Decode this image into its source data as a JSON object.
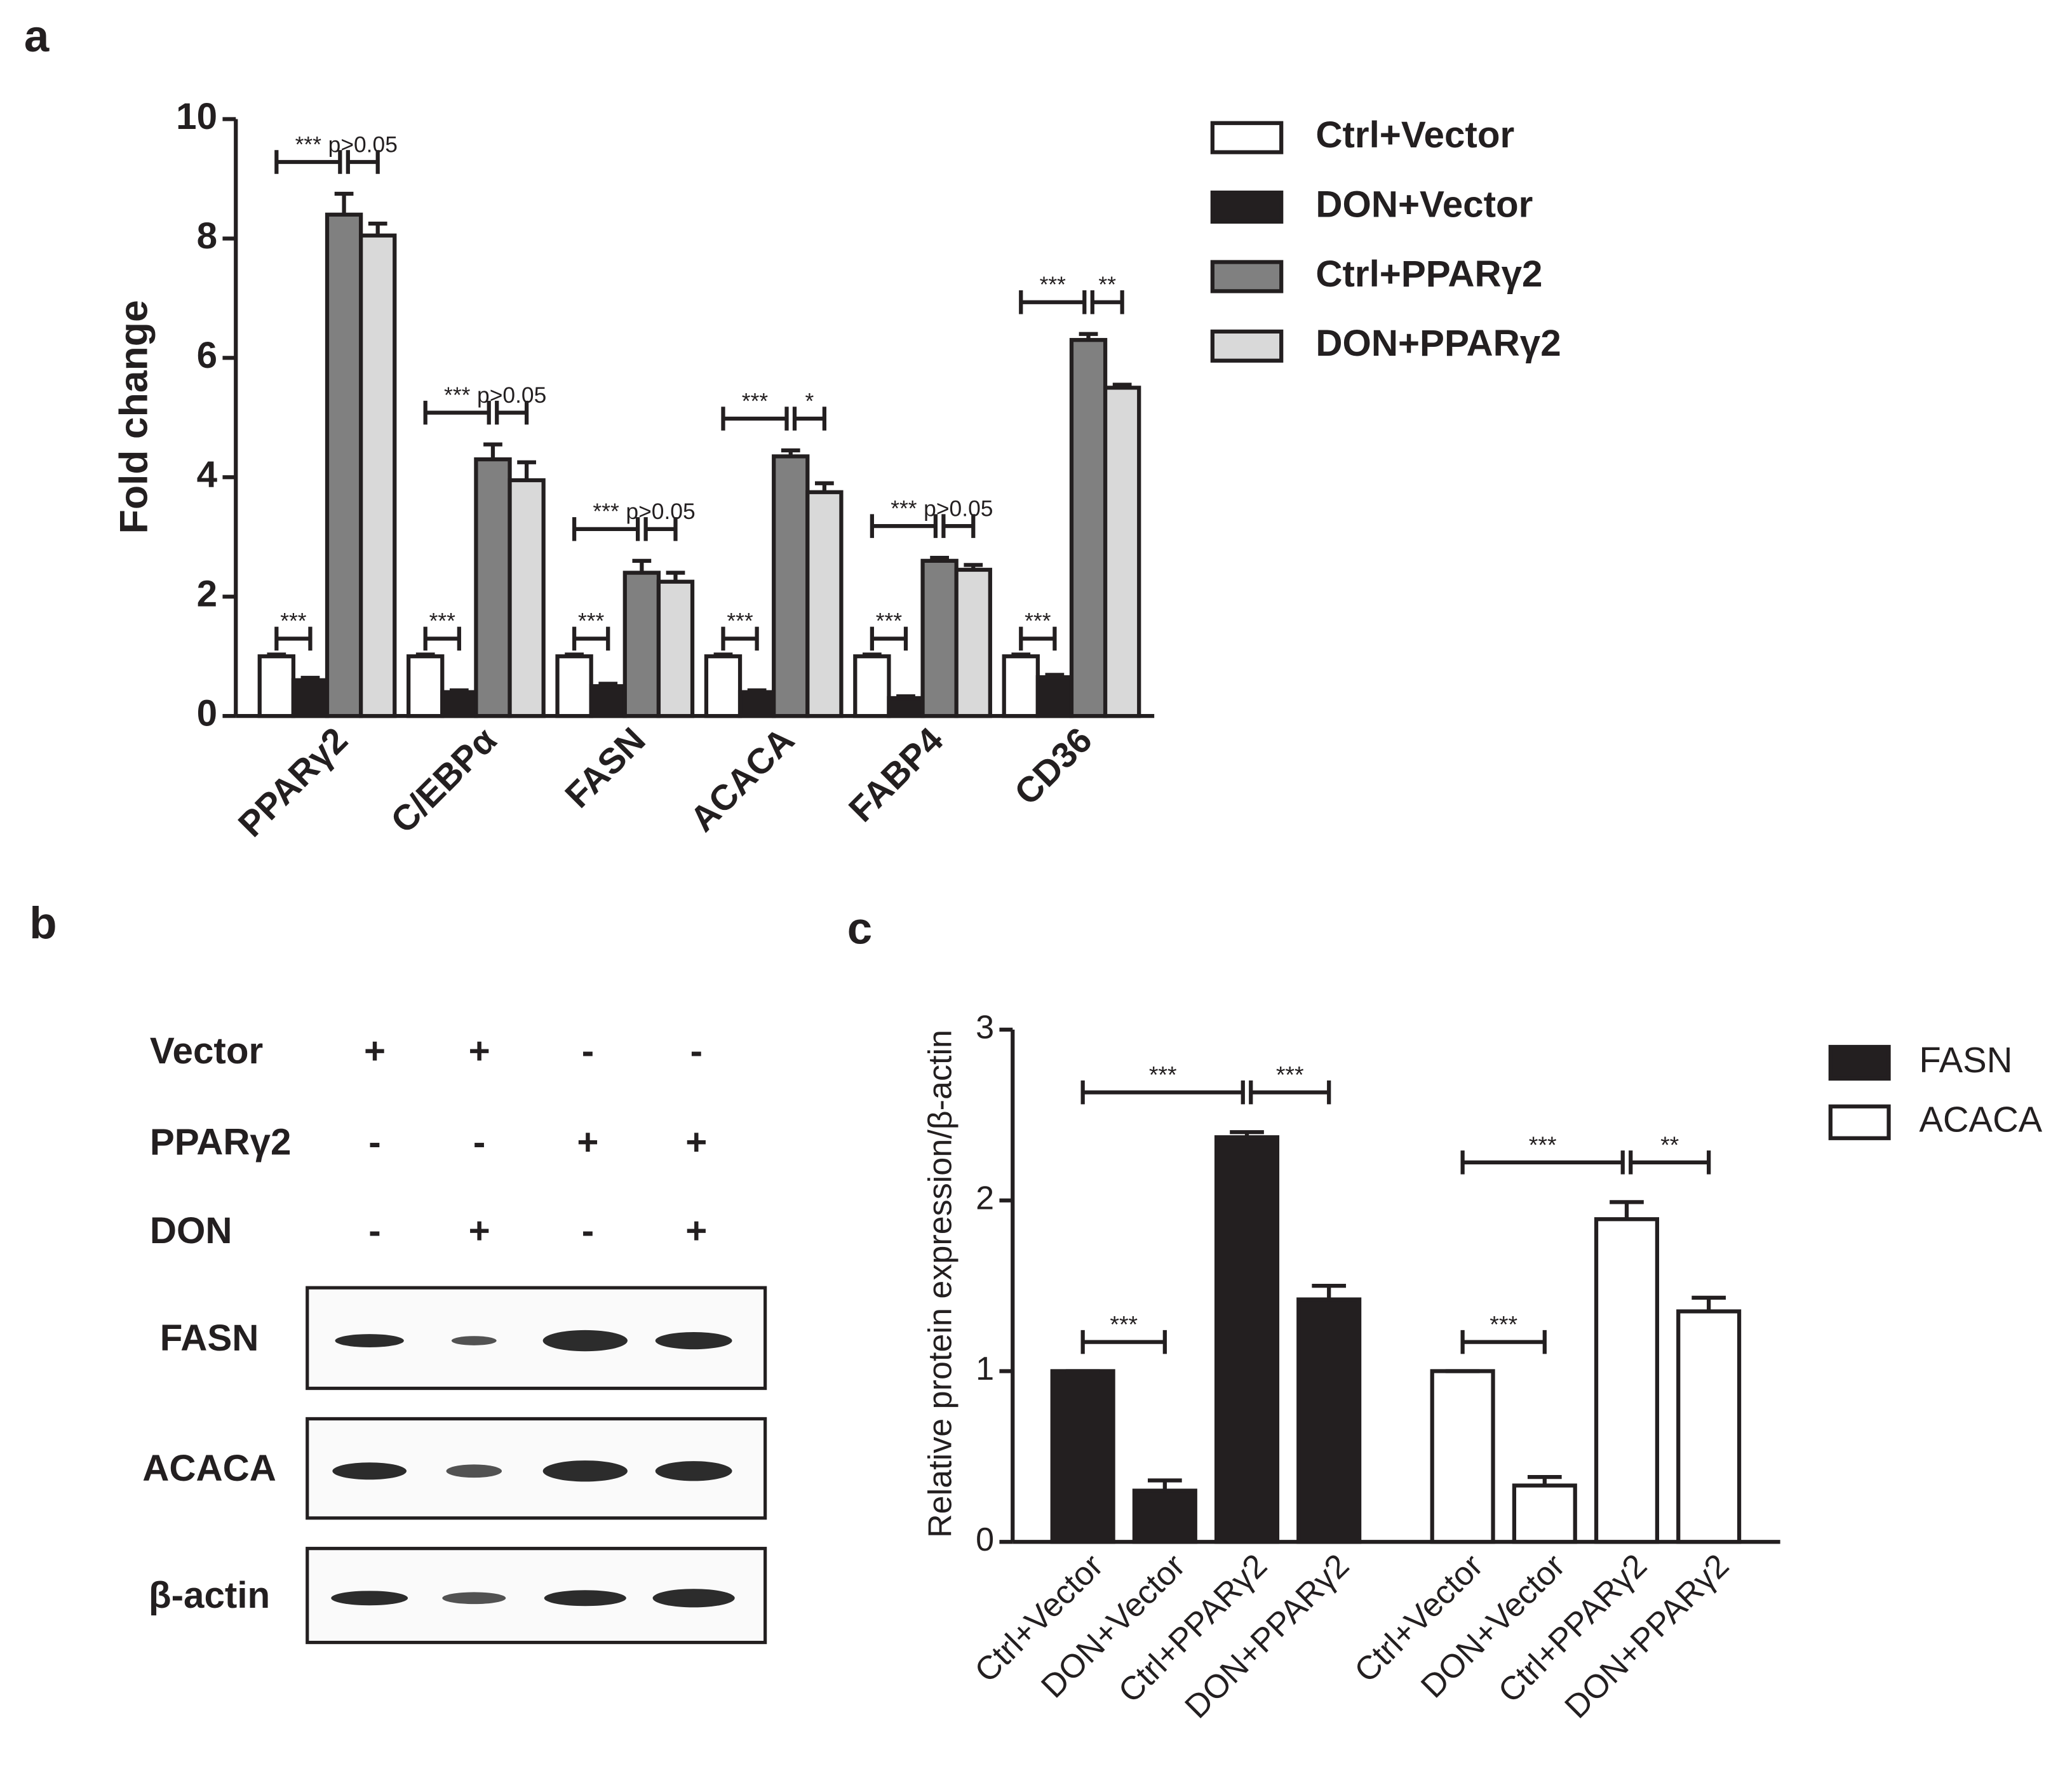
{
  "chart_data": [
    {
      "type": "bar",
      "panel_label": "a",
      "ylabel": "Fold change",
      "categories": [
        "PPARγ2",
        "C/EBPα",
        "FASN",
        "ACACA",
        "FABP4",
        "CD36"
      ],
      "series": [
        {
          "name": "Ctrl+Vector",
          "color": "#ffffff",
          "values": [
            1,
            1,
            1,
            1,
            1,
            1
          ],
          "errors": [
            0.03,
            0.03,
            0.03,
            0.03,
            0.03,
            0.03
          ]
        },
        {
          "name": "DON+Vector",
          "color": "#231f20",
          "values": [
            0.6,
            0.4,
            0.5,
            0.4,
            0.3,
            0.65
          ],
          "errors": [
            0.04,
            0.03,
            0.04,
            0.03,
            0.03,
            0.04
          ]
        },
        {
          "name": "Ctrl+PPARγ2",
          "color": "#808080",
          "values": [
            8.4,
            4.3,
            2.4,
            4.35,
            2.6,
            6.3
          ],
          "errors": [
            0.35,
            0.25,
            0.2,
            0.1,
            0.05,
            0.1
          ]
        },
        {
          "name": "DON+PPARγ2",
          "color": "#d9d9d9",
          "values": [
            8.05,
            3.95,
            2.25,
            3.75,
            2.45,
            5.5
          ],
          "errors": [
            0.2,
            0.3,
            0.15,
            0.15,
            0.08,
            0.05
          ]
        }
      ],
      "ylim": [
        0,
        10
      ],
      "yticks": [
        0,
        2,
        4,
        6,
        8,
        10
      ],
      "significance": [
        [
          "***",
          "***",
          "p>0.05"
        ],
        [
          "***",
          "***",
          "p>0.05"
        ],
        [
          "***",
          "***",
          "p>0.05"
        ],
        [
          "***",
          "***",
          "*"
        ],
        [
          "***",
          "***",
          "p>0.05"
        ],
        [
          "***",
          "***",
          "**"
        ]
      ]
    },
    {
      "type": "bar",
      "panel_label": "c",
      "ylabel": "Relative protein expression/β-actin",
      "categories": [
        "Ctrl+Vector",
        "DON+Vector",
        "Ctrl+PPARγ2",
        "DON+PPARγ2",
        "Ctrl+Vector",
        "DON+Vector",
        "Ctrl+PPARγ2",
        "DON+PPARγ2"
      ],
      "series": [
        {
          "name": "FASN",
          "color": "#231f20",
          "values": [
            1,
            0.3,
            2.37,
            1.42,
            null,
            null,
            null,
            null
          ],
          "errors": [
            0,
            0.06,
            0.03,
            0.08,
            null,
            null,
            null,
            null
          ]
        },
        {
          "name": "ACACA",
          "color": "#ffffff",
          "values": [
            null,
            null,
            null,
            null,
            1,
            0.33,
            1.89,
            1.35
          ],
          "errors": [
            null,
            null,
            null,
            null,
            0,
            0.05,
            0.1,
            0.08
          ]
        }
      ],
      "ylim": [
        0,
        3
      ],
      "yticks": [
        0,
        1,
        2,
        3
      ],
      "significance": [
        [
          "***",
          "***",
          "***"
        ],
        [
          "***",
          "***",
          "**"
        ]
      ]
    }
  ],
  "blot": {
    "panel_label": "b",
    "conditions": [
      {
        "name": "Vector",
        "signs": [
          "+",
          "+",
          "-",
          "-"
        ]
      },
      {
        "name": "PPARγ2",
        "signs": [
          "-",
          "-",
          "+",
          "+"
        ]
      },
      {
        "name": "DON",
        "signs": [
          "-",
          "+",
          "-",
          "+"
        ]
      }
    ],
    "bands": [
      "FASN",
      "ACACA",
      "β-actin"
    ]
  }
}
